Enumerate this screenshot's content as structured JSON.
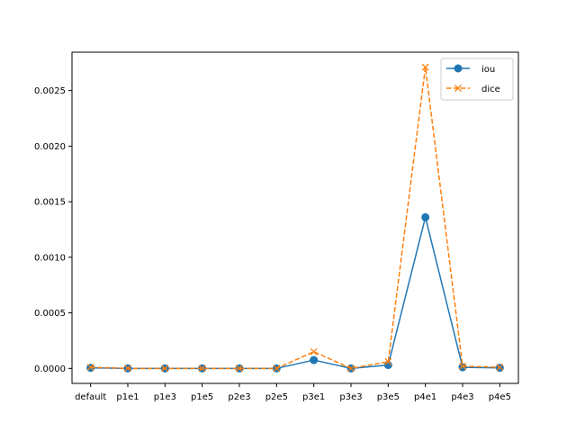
{
  "chart_data": {
    "type": "line",
    "title": "",
    "xlabel": "",
    "ylabel": "",
    "categories": [
      "default",
      "p1e1",
      "p1e3",
      "p1e5",
      "p2e3",
      "p2e5",
      "p3e1",
      "p3e3",
      "p3e5",
      "p4e1",
      "p4e3",
      "p4e5"
    ],
    "series": [
      {
        "name": "iou",
        "color": "#1f77b4",
        "line_style": "solid",
        "marker": "circle",
        "values": [
          5e-06,
          0.0,
          0.0,
          0.0,
          0.0,
          0.0,
          7.5e-05,
          0.0,
          3e-05,
          0.00136,
          1e-05,
          5e-06
        ]
      },
      {
        "name": "dice",
        "color": "#ff7f0e",
        "line_style": "dashed",
        "marker": "x",
        "values": [
          1e-05,
          0.0,
          0.0,
          0.0,
          0.0,
          0.0,
          0.00015,
          0.0,
          6e-05,
          0.00271,
          2e-05,
          1e-05
        ]
      }
    ],
    "ylim": [
      -0.000135,
      0.0028455
    ],
    "yticks": [
      0.0,
      0.0005,
      0.001,
      0.0015,
      0.002,
      0.0025
    ],
    "ytick_labels": [
      "0.0000",
      "0.0005",
      "0.0010",
      "0.0015",
      "0.0020",
      "0.0025"
    ],
    "grid": false,
    "legend_position": "top-right"
  }
}
